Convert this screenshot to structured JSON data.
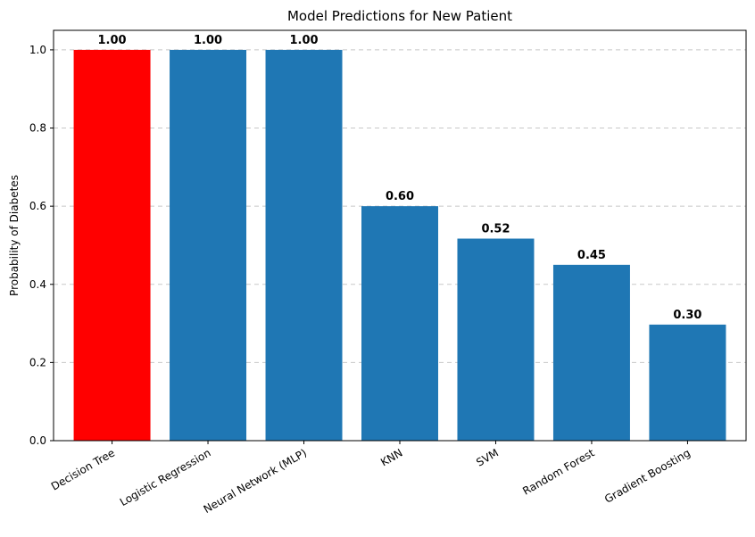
{
  "chart_data": {
    "type": "bar",
    "title": "Model Predictions for New Patient",
    "xlabel": "",
    "ylabel": "Probability of Diabetes",
    "categories": [
      "Decision Tree",
      "Logistic Regression",
      "Neural Network (MLP)",
      "KNN",
      "SVM",
      "Random Forest",
      "Gradient Boosting"
    ],
    "values": [
      1.0,
      1.0,
      1.0,
      0.6,
      0.517,
      0.45,
      0.297
    ],
    "data_labels": [
      "1.00",
      "1.00",
      "1.00",
      "0.60",
      "0.52",
      "0.45",
      "0.30"
    ],
    "bar_colors": [
      "#ff0000",
      "#1f77b4",
      "#1f77b4",
      "#1f77b4",
      "#1f77b4",
      "#1f77b4",
      "#1f77b4"
    ],
    "ylim": [
      0,
      1.05
    ],
    "yticks": [
      0.0,
      0.2,
      0.4,
      0.6,
      0.8,
      1.0
    ],
    "ytick_labels": [
      "0.0",
      "0.2",
      "0.4",
      "0.6",
      "0.8",
      "1.0"
    ],
    "grid": "y-dashed",
    "legend": "none"
  }
}
